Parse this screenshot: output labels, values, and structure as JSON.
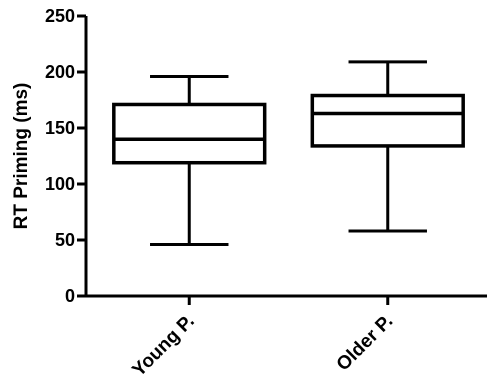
{
  "chart_data": {
    "type": "box",
    "title": "",
    "xlabel": "",
    "ylabel": "RT Priming (ms)",
    "ylim": [
      0,
      250
    ],
    "yticks": [
      0,
      50,
      100,
      150,
      200,
      250
    ],
    "ytick_labels": [
      "0",
      "50",
      "100",
      "150",
      "200",
      "250"
    ],
    "grid": false,
    "categories": [
      "Young P.",
      "Older P."
    ],
    "boxes": [
      {
        "category": "Young P.",
        "min": 46,
        "q1": 119,
        "median": 140,
        "q3": 171,
        "max": 196
      },
      {
        "category": "Older P.",
        "min": 58,
        "q1": 134,
        "median": 163,
        "q3": 179,
        "max": 209
      }
    ],
    "color": "#000000"
  }
}
